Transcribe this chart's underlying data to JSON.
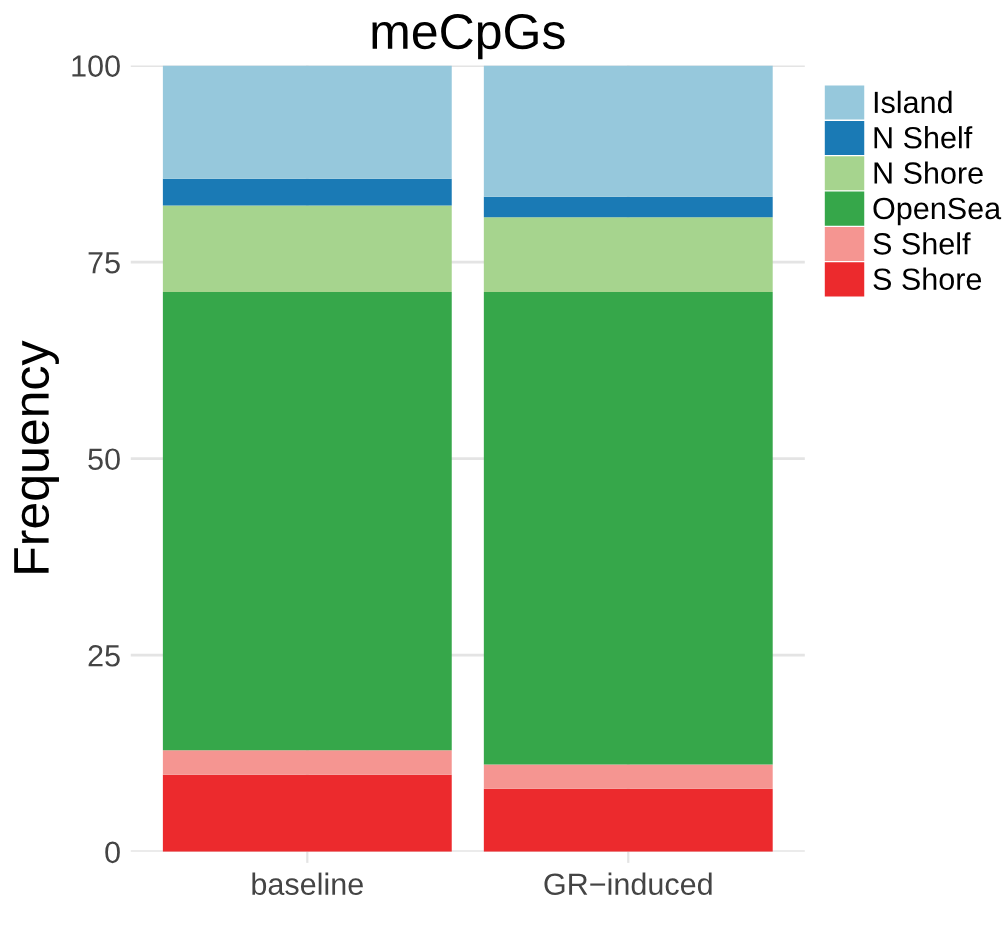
{
  "chart_data": {
    "type": "bar",
    "title": "meCpGs",
    "ylabel": "Frequency",
    "stacked": true,
    "categories": [
      "baseline",
      "GR−induced"
    ],
    "series": [
      {
        "name": "S Shore",
        "color": "#ec2a2d",
        "values": [
          9.8,
          8.0
        ]
      },
      {
        "name": "S Shelf",
        "color": "#f59591",
        "values": [
          3.1,
          3.1
        ]
      },
      {
        "name": "OpenSea",
        "color": "#36a74a",
        "values": [
          58.3,
          60.1
        ]
      },
      {
        "name": "N Shore",
        "color": "#a6d48e",
        "values": [
          11.0,
          9.5
        ]
      },
      {
        "name": "N Shelf",
        "color": "#1a7ab5",
        "values": [
          3.4,
          2.6
        ]
      },
      {
        "name": "Island",
        "color": "#96c8dc",
        "values": [
          14.4,
          16.7
        ]
      }
    ],
    "ylim": [
      0,
      100
    ],
    "yticks": [
      0,
      25,
      50,
      75,
      100
    ],
    "grid": true,
    "legend": "top right"
  }
}
